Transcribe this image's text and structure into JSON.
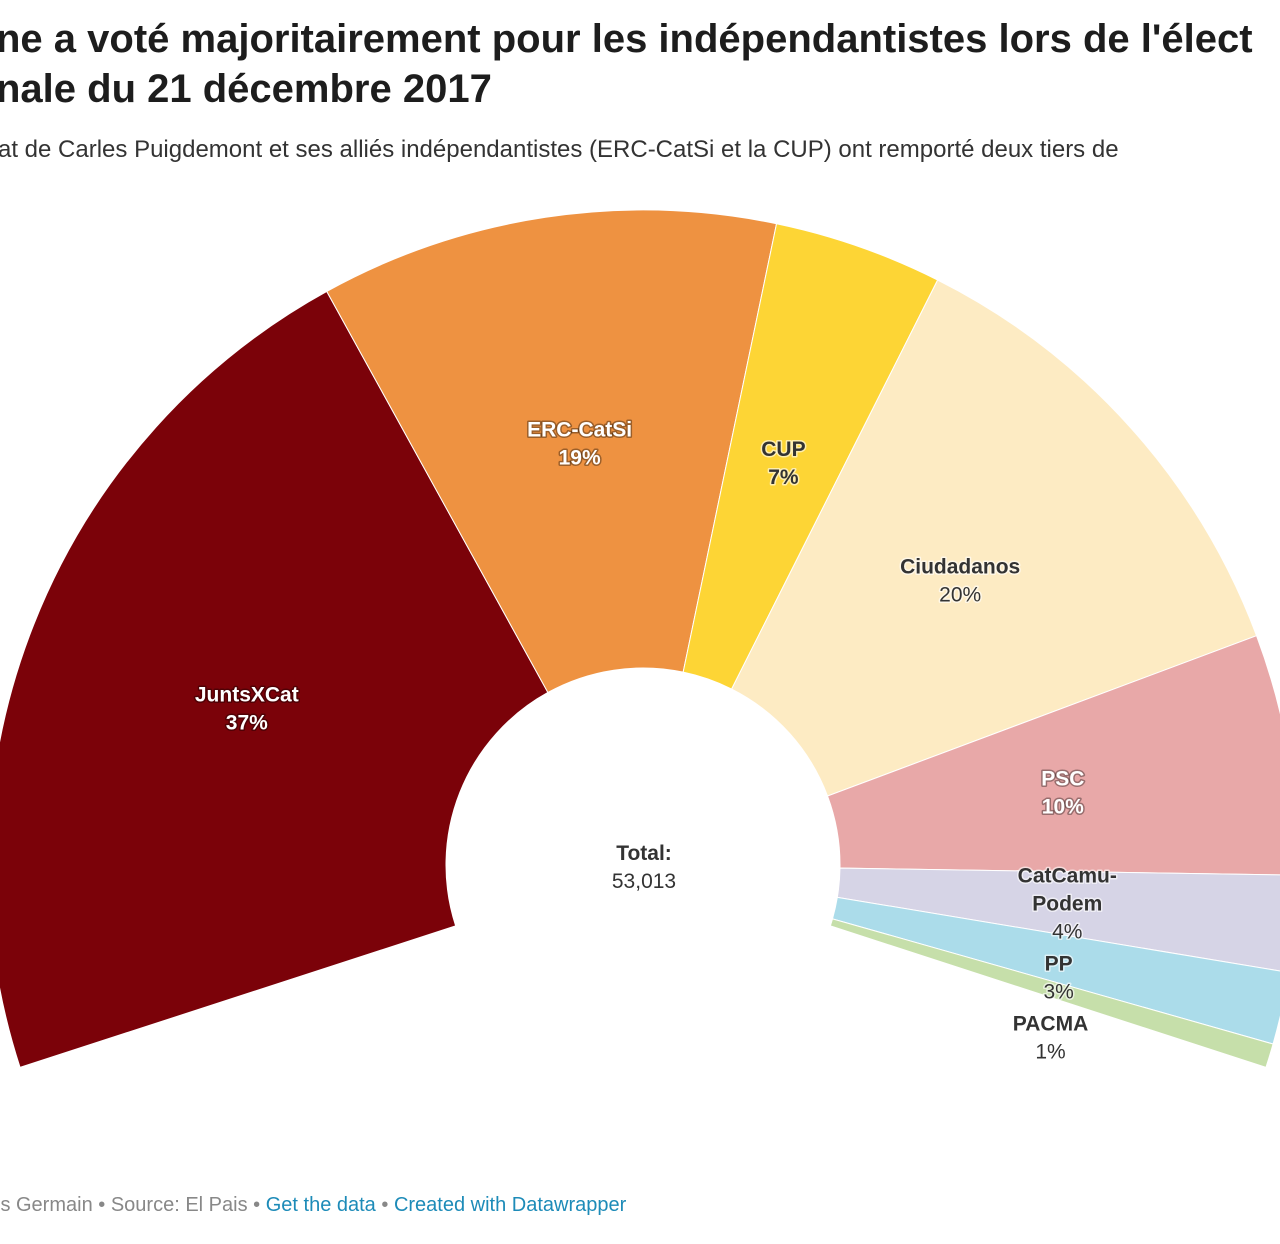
{
  "title": "ne a voté majoritairement pour les indépendantistes lors de l'élect\nnale du 21 décembre 2017",
  "title_lines": [
    "ne a voté majoritairement pour les indépendantistes lors de l'élect",
    "nale du 21 décembre 2017"
  ],
  "subtitle": "at de Carles Puigdemont et ses alliés indépendantistes (ERC-CatSi et la CUP) ont remporté deux tiers de",
  "footer": {
    "byline": "is Germain",
    "source": "Source: El Pais",
    "separator": "•",
    "get_data": "Get the data",
    "created_with": "Created with Datawrapper"
  },
  "chart_data": {
    "type": "pie",
    "variant": "election-donut",
    "center_label": "Total:",
    "center_value": "53,013",
    "slices": [
      {
        "name": "JuntsXCat",
        "value": 37,
        "label": "37%",
        "color": "#7b0209",
        "text_color": "#ffffff"
      },
      {
        "name": "ERC-CatSi",
        "value": 19,
        "label": "19%",
        "color": "#ee9241",
        "text_color": "#ffffff"
      },
      {
        "name": "CUP",
        "value": 7,
        "label": "7%",
        "color": "#fdd535",
        "text_color": "#333333"
      },
      {
        "name": "Ciudadanos",
        "value": 20,
        "label": "20%",
        "color": "#fdebc3",
        "text_color": "#333333"
      },
      {
        "name": "PSC",
        "value": 10,
        "label": "10%",
        "color": "#e8a8a8",
        "text_color": "#ffffff"
      },
      {
        "name": "CatCamu-\nPodem",
        "value": 4,
        "label": "4%",
        "color": "#d6d4e6",
        "text_color": "#333333"
      },
      {
        "name": "PP",
        "value": 3,
        "label": "3%",
        "color": "#abdcea",
        "text_color": "#333333"
      },
      {
        "name": "PACMA",
        "value": 1,
        "label": "1%",
        "color": "#c6dfaa",
        "text_color": "#333333"
      }
    ]
  }
}
